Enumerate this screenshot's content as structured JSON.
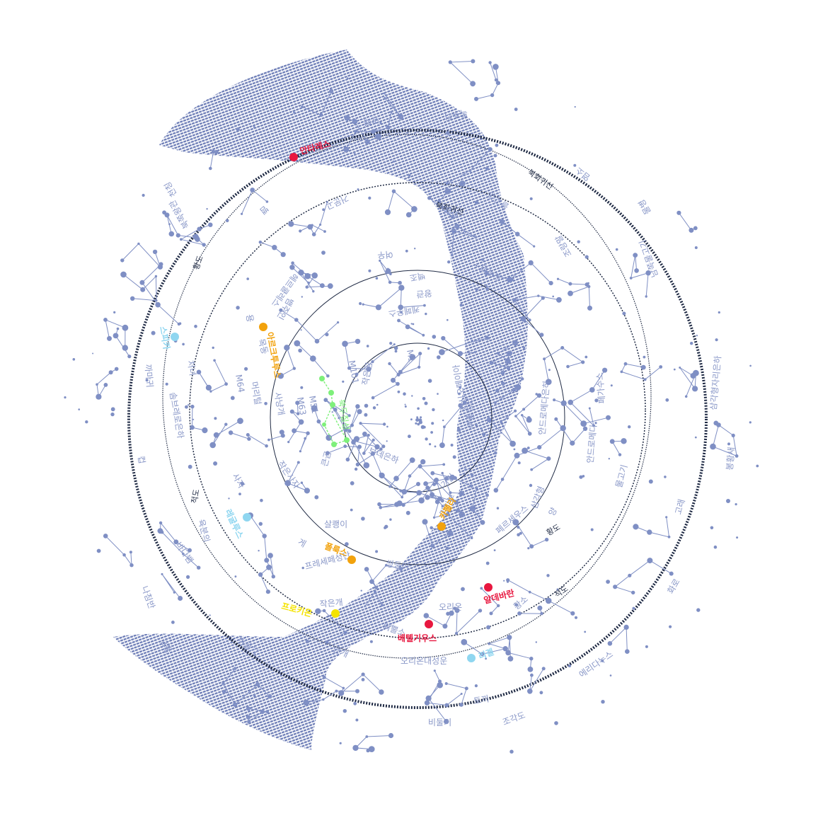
{
  "colors": {
    "milky_way": "#6f7fb8",
    "constellation": "#7f8fc4",
    "label": "#8a98c8",
    "grid": "#1f2a44",
    "red_star": "#e8173f",
    "orange_star": "#f2a20c",
    "cyan_star": "#8fd6f0",
    "yellow_star": "#f4e300",
    "green_asterism": "#7ef07a"
  },
  "circle_labels": {
    "tropic_cancer": "북회귀선",
    "equator": "적도",
    "ecliptic": "황도"
  },
  "constellation_labels": [
    "작은곰",
    "용",
    "케페우스",
    "카시오페이아",
    "기린",
    "큰곰",
    "목동",
    "헤르쿨레스",
    "거문고",
    "백조",
    "도마뱀",
    "안드로메다",
    "페르세우스",
    "마차부",
    "살쾡이",
    "작은사자",
    "사자",
    "게",
    "쌍둥이",
    "작은개",
    "오리온",
    "황소",
    "양",
    "삼각형",
    "물고기",
    "페가수스",
    "고래",
    "에리다누스",
    "토끼",
    "비둘기",
    "조각도",
    "큰개",
    "외뿔소",
    "바다뱀",
    "육분의",
    "컵",
    "까마귀",
    "처녀",
    "머리털",
    "사냥개",
    "북쪽왕관",
    "뱀주인",
    "방패",
    "독수리",
    "화살",
    "여우",
    "돌고래",
    "조랑말",
    "물병",
    "염소",
    "남쪽물고기",
    "봉황새",
    "화로",
    "뱀",
    "천칭",
    "왕관",
    "보데은하",
    "안드로메다은하",
    "삼각형자리은하",
    "오리온대성운",
    "프레세페성단",
    "솜브레로은하",
    "M51",
    "M101",
    "M63",
    "M64",
    "M1",
    "이중성단",
    "북두칠성",
    "고물",
    "나침반",
    "비둘기"
  ],
  "bright_stars": [
    {
      "name": "베텔기우스",
      "color": "red"
    },
    {
      "name": "알데바란",
      "color": "red"
    },
    {
      "name": "안타레스",
      "color": "red"
    },
    {
      "name": "카펠라",
      "color": "orange"
    },
    {
      "name": "폴룩스",
      "color": "orange"
    },
    {
      "name": "아르크투루스",
      "color": "orange"
    },
    {
      "name": "레굴루스",
      "color": "cyan"
    },
    {
      "name": "스피카",
      "color": "cyan"
    },
    {
      "name": "리겔",
      "color": "cyan"
    },
    {
      "name": "프로키온",
      "color": "yellow"
    }
  ]
}
